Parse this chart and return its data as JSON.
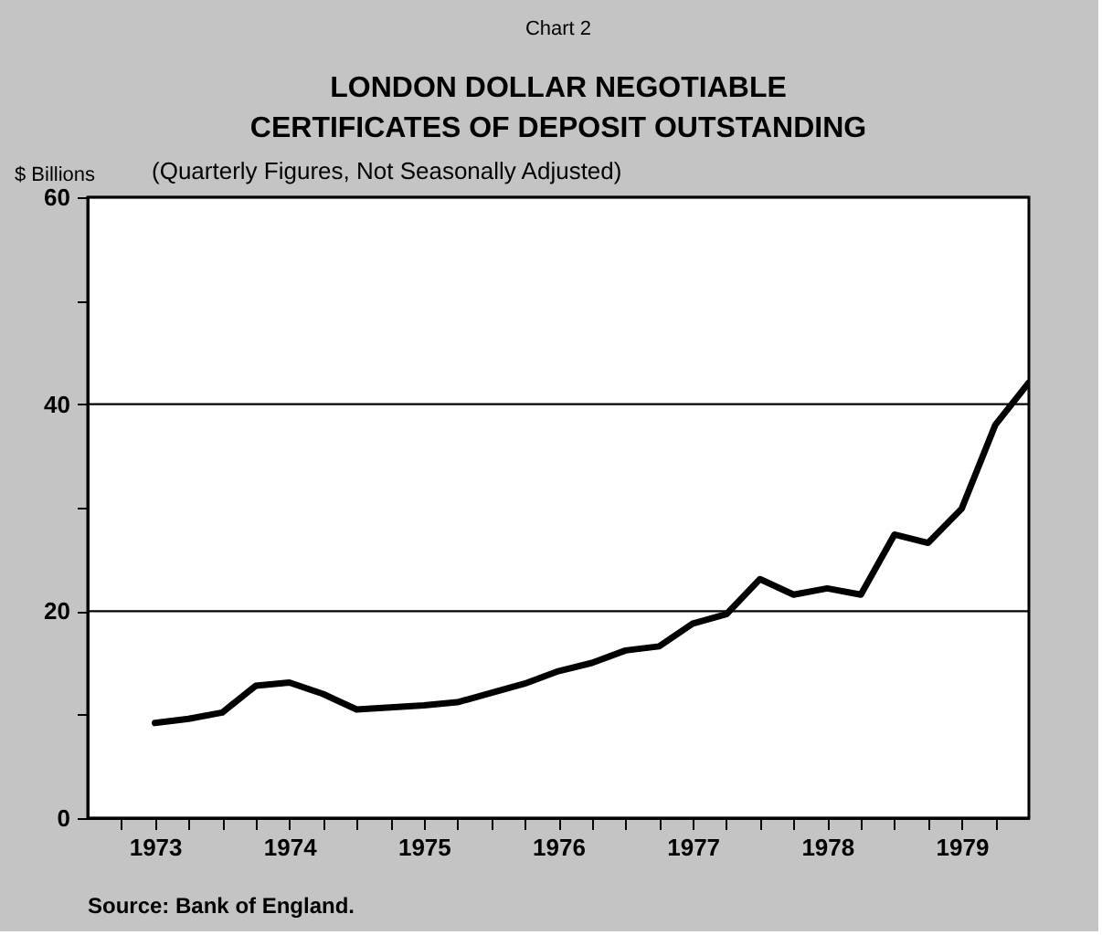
{
  "chart_data": {
    "type": "line",
    "title": "LONDON DOLLAR NEGOTIABLE\nCERTIFICATES OF DEPOSIT OUTSTANDING",
    "subtitle": "(Quarterly Figures, Not Seasonally Adjusted)",
    "ylabel": "$ Billions",
    "annotations": [
      "Chart 2",
      "Source:  Bank of England."
    ],
    "x": [
      1973.5,
      1973.75,
      1974.0,
      1974.25,
      1974.5,
      1974.75,
      1975.0,
      1975.25,
      1975.5,
      1975.75,
      1976.0,
      1976.25,
      1976.5,
      1976.75,
      1977.0,
      1977.25,
      1977.5,
      1977.75,
      1978.0,
      1978.25,
      1978.5,
      1978.75,
      1979.0,
      1979.25,
      1979.5,
      1979.75,
      1980.0
    ],
    "series": [
      {
        "color": "#000000",
        "values": [
          9.2,
          9.6,
          10.2,
          12.8,
          13.1,
          12.0,
          10.5,
          10.7,
          10.9,
          11.2,
          12.1,
          13.0,
          14.2,
          15.0,
          16.2,
          16.6,
          18.8,
          19.7,
          23.1,
          21.6,
          22.2,
          21.6,
          27.4,
          26.6,
          29.9,
          38.0,
          42.1
        ]
      }
    ],
    "xlim": [
      1973,
      1980
    ],
    "xticks": [
      {
        "value": 1973.5,
        "label": "1973"
      },
      {
        "value": 1974.5,
        "label": "1974"
      },
      {
        "value": 1975.5,
        "label": "1975"
      },
      {
        "value": 1976.5,
        "label": "1976"
      },
      {
        "value": 1977.5,
        "label": "1977"
      },
      {
        "value": 1978.5,
        "label": "1978"
      },
      {
        "value": 1979.5,
        "label": "1979"
      },
      {
        "value": 1973.25,
        "label": null
      },
      {
        "value": 1973.75,
        "label": null
      },
      {
        "value": 1974,
        "label": null
      },
      {
        "value": 1974.25,
        "label": null
      },
      {
        "value": 1974.75,
        "label": null
      },
      {
        "value": 1975,
        "label": null
      },
      {
        "value": 1975.25,
        "label": null
      },
      {
        "value": 1975.75,
        "label": null
      },
      {
        "value": 1976,
        "label": null
      },
      {
        "value": 1976.25,
        "label": null
      },
      {
        "value": 1976.75,
        "label": null
      },
      {
        "value": 1977,
        "label": null
      },
      {
        "value": 1977.25,
        "label": null
      },
      {
        "value": 1977.75,
        "label": null
      },
      {
        "value": 1978,
        "label": null
      },
      {
        "value": 1978.25,
        "label": null
      },
      {
        "value": 1978.75,
        "label": null
      },
      {
        "value": 1979,
        "label": null
      },
      {
        "value": 1979.25,
        "label": null
      },
      {
        "value": 1979.75,
        "label": null
      }
    ],
    "ylim": [
      0,
      60
    ],
    "yticks": [
      0,
      20,
      40,
      60,
      {
        "value": 10,
        "label": null
      },
      {
        "value": 30,
        "label": null
      },
      {
        "value": 50,
        "label": null
      }
    ],
    "grid": "y",
    "legend": false,
    "marker": "none",
    "line_style": "solid"
  }
}
